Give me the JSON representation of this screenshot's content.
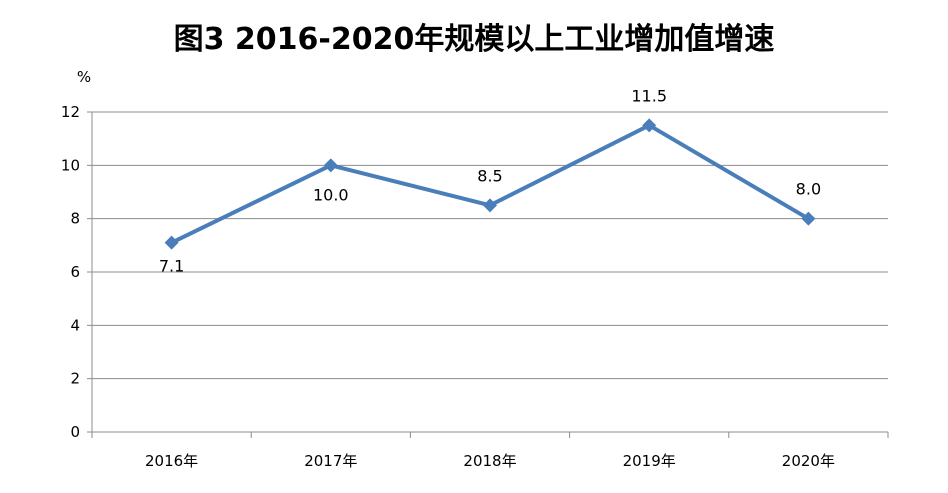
{
  "chart_data": {
    "type": "line",
    "title": "图3  2016-2020年规模以上工业增加值增速",
    "ylabel": "%",
    "categories": [
      "2016年",
      "2017年",
      "2018年",
      "2019年",
      "2020年"
    ],
    "series": [
      {
        "values": [
          7.1,
          10.0,
          8.5,
          11.5,
          8.0
        ],
        "labels": [
          "7.1",
          "10.0",
          "8.5",
          "11.5",
          "8.0"
        ]
      }
    ],
    "ylim": [
      0,
      12
    ],
    "yticks": [
      0,
      2,
      4,
      6,
      8,
      10,
      12
    ],
    "grid": true,
    "line_color": "#4A7EBB",
    "marker": "diamond"
  }
}
